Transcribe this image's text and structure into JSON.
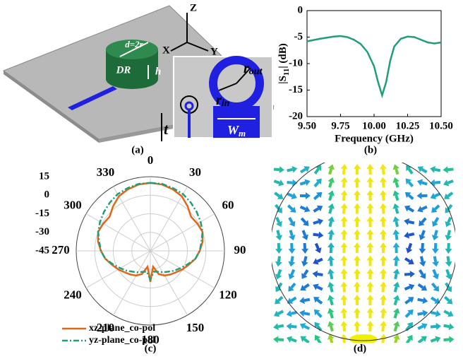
{
  "panel_a": {
    "caption": "(a)",
    "axis_z": "Z",
    "axis_x": "X",
    "axis_y": "Y",
    "diameter": "d=2r",
    "resonator": "DR",
    "height": "h",
    "outer_radius": [
      "r",
      "out"
    ],
    "inner_radius": [
      "r",
      "in"
    ],
    "width": [
      "W",
      "m"
    ],
    "thickness": "t"
  },
  "chart_data": [
    {
      "type": "line",
      "caption": "(b)",
      "xlabel": "Frequency (GHz)",
      "ylabel": [
        "|S",
        "11",
        "| (dB)"
      ],
      "x": [
        9.5,
        9.6,
        9.7,
        9.75,
        9.8,
        9.85,
        9.9,
        9.95,
        10.0,
        10.03,
        10.06,
        10.09,
        10.12,
        10.15,
        10.2,
        10.25,
        10.3,
        10.35,
        10.4,
        10.45,
        10.5
      ],
      "series": [
        {
          "color": "#1f9e78",
          "values": [
            -5.8,
            -5.3,
            -4.9,
            -4.8,
            -5.0,
            -5.5,
            -6.3,
            -7.8,
            -10.5,
            -13.5,
            -16,
            -13.5,
            -9.5,
            -6.8,
            -5.3,
            -4.9,
            -5.0,
            -5.5,
            -6.0,
            -6.2,
            -6.0
          ]
        }
      ],
      "xlim": [
        9.5,
        10.5
      ],
      "xticks": [
        {
          "value": 9.5,
          "label": "9.50"
        },
        {
          "value": 9.75,
          "label": "9.75"
        },
        {
          "value": 10.0,
          "label": "10.00"
        },
        {
          "value": 10.25,
          "label": "10.25"
        },
        {
          "value": 10.5,
          "label": "10.50"
        }
      ],
      "ylim": [
        -20,
        0
      ],
      "yticks": [
        0,
        -5,
        -10,
        -15,
        -20
      ]
    },
    {
      "type": "polar",
      "caption": "(c)",
      "theta": [
        0,
        10,
        20,
        30,
        40,
        50,
        60,
        70,
        80,
        90,
        100,
        110,
        120,
        130,
        140,
        150,
        160,
        170,
        180,
        190,
        200,
        210,
        220,
        230,
        240,
        250,
        260,
        270,
        280,
        290,
        300,
        310,
        320,
        330,
        340,
        350
      ],
      "rlim": [
        -45,
        15
      ],
      "rticks": [
        15,
        0,
        -15,
        -30,
        -45
      ],
      "thetaticks": [
        0,
        30,
        60,
        90,
        120,
        150,
        180,
        210,
        240,
        270,
        300,
        330
      ],
      "series": [
        {
          "name": "xz-plane_co-pol",
          "color": "#e0661a",
          "dash": "solid",
          "values": [
            10,
            9.5,
            8,
            6,
            2,
            -2,
            -1,
            0,
            -2,
            -5,
            -8,
            -12,
            -15,
            -18,
            -20,
            -22,
            -25,
            -32,
            -20,
            -32,
            -25,
            -22,
            -20,
            -18,
            -15,
            -12,
            -8,
            -5,
            -2,
            0,
            -1,
            -2,
            2,
            6,
            8,
            9.5
          ]
        },
        {
          "name": "yz-plane_co-pol",
          "color": "#1f9e78",
          "dash": "dashdot",
          "values": [
            10,
            10,
            9,
            8,
            6,
            4,
            2,
            0,
            -3,
            -5,
            -8,
            -13,
            -17,
            -20,
            -23,
            -25,
            -27,
            -28,
            -22,
            -28,
            -27,
            -25,
            -23,
            -20,
            -17,
            -13,
            -8,
            -5,
            -3,
            0,
            2,
            4,
            6,
            8,
            9,
            10
          ]
        }
      ]
    }
  ],
  "panel_d": {
    "caption": "(d)"
  }
}
